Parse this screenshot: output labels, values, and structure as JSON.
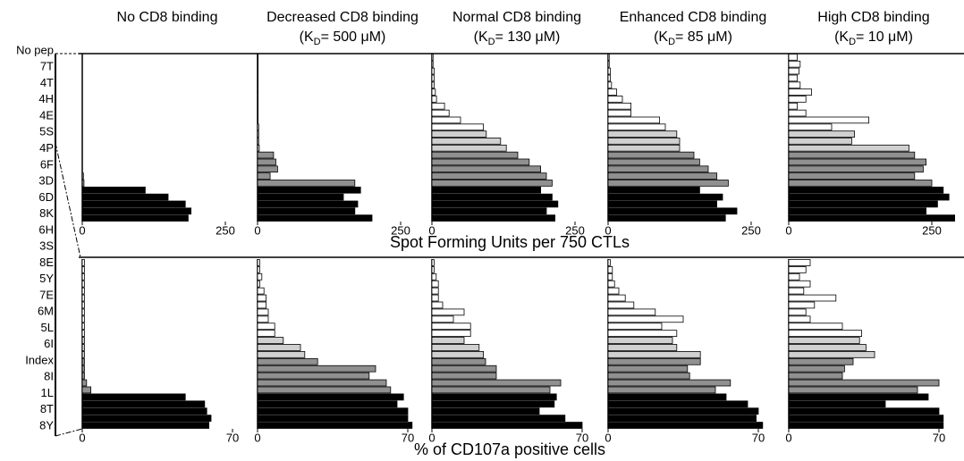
{
  "categories": [
    "No pep",
    "7T",
    "4T",
    "4H",
    "4E",
    "5S",
    "4P",
    "6F",
    "3D",
    "6D",
    "8K",
    "6H",
    "3S",
    "8E",
    "5Y",
    "7E",
    "6M",
    "5L",
    "6I",
    "Index",
    "8I",
    "1L",
    "8T",
    "8Y"
  ],
  "bar_colors": [
    "#ffffff",
    "#ffffff",
    "#ffffff",
    "#ffffff",
    "#ffffff",
    "#ffffff",
    "#ffffff",
    "#ffffff",
    "#ffffff",
    "#ffffff",
    "#ffffff",
    "#d0d0d0",
    "#d0d0d0",
    "#d0d0d0",
    "#909090",
    "#909090",
    "#909090",
    "#909090",
    "#909090",
    "#000000",
    "#000000",
    "#000000",
    "#000000",
    "#000000"
  ],
  "columns": [
    {
      "title": "No CD8 binding"
    },
    {
      "title": "Decreased CD8 binding",
      "subtitle": {
        "pre": "(K",
        "sub": "D",
        "post": "= 500 μM)"
      }
    },
    {
      "title": "Normal CD8 binding",
      "subtitle": {
        "pre": "(K",
        "sub": "D",
        "post": "= 130 μM)"
      }
    },
    {
      "title": "Enhanced CD8 binding",
      "subtitle": {
        "pre": "(K",
        "sub": "D",
        "post": "= 85 μM)"
      }
    },
    {
      "title": "High CD8 binding",
      "subtitle": {
        "pre": "(K",
        "sub": "D",
        "post": "= 10 μM)"
      }
    }
  ],
  "axis_titles": [
    "Spot Forming Units per 750 CTLs",
    "% of CD107a positive cells"
  ],
  "chart_data": [
    {
      "type": "bar",
      "values": [
        0,
        0,
        0,
        0,
        0,
        0,
        0,
        0,
        0,
        0,
        0,
        0,
        0,
        0,
        0,
        0,
        0,
        2,
        3,
        110,
        150,
        180,
        190,
        185
      ],
      "xlim": [
        0,
        300
      ],
      "xticks": [
        0,
        250
      ]
    },
    {
      "type": "bar",
      "values": [
        1,
        1,
        1,
        1,
        1,
        1,
        1,
        1,
        1,
        1,
        2,
        2,
        2,
        3,
        28,
        32,
        35,
        22,
        170,
        180,
        150,
        175,
        170,
        200
      ],
      "xlim": [
        0,
        300
      ],
      "xticks": [
        0,
        250
      ]
    },
    {
      "type": "bar",
      "values": [
        2,
        2,
        4,
        4,
        4,
        6,
        8,
        22,
        30,
        50,
        90,
        95,
        120,
        130,
        150,
        170,
        190,
        200,
        210,
        190,
        210,
        220,
        200,
        215
      ],
      "xlim": [
        0,
        300
      ],
      "xticks": [
        0,
        250
      ]
    },
    {
      "type": "bar",
      "values": [
        2,
        2,
        4,
        4,
        6,
        15,
        25,
        40,
        40,
        90,
        100,
        120,
        125,
        125,
        150,
        160,
        175,
        190,
        210,
        160,
        200,
        190,
        225,
        205
      ],
      "xlim": [
        0,
        300
      ],
      "xticks": [
        0,
        250
      ]
    },
    {
      "type": "bar",
      "values": [
        15,
        20,
        18,
        15,
        20,
        40,
        30,
        15,
        30,
        140,
        75,
        115,
        110,
        210,
        220,
        240,
        235,
        220,
        250,
        270,
        280,
        260,
        240,
        290
      ],
      "xlim": [
        0,
        300
      ],
      "xticks": [
        0,
        250
      ]
    },
    {
      "type": "bar",
      "values": [
        1,
        1,
        1,
        1,
        1,
        1,
        1,
        1,
        1,
        1,
        1,
        1,
        1,
        1,
        1,
        1,
        1,
        2,
        4,
        48,
        57,
        58,
        60,
        59
      ],
      "xlim": [
        0,
        80
      ],
      "xticks": [
        0,
        70
      ]
    },
    {
      "type": "bar",
      "values": [
        1,
        1,
        2,
        1,
        3,
        4,
        4,
        5,
        5,
        8,
        8,
        12,
        20,
        22,
        28,
        55,
        52,
        60,
        62,
        68,
        65,
        70,
        70,
        72
      ],
      "xlim": [
        0,
        80
      ],
      "xticks": [
        0,
        70
      ]
    },
    {
      "type": "bar",
      "values": [
        1,
        1,
        2,
        3,
        3,
        3,
        5,
        15,
        10,
        18,
        18,
        15,
        22,
        24,
        25,
        30,
        30,
        60,
        55,
        58,
        57,
        50,
        62,
        70
      ],
      "xlim": [
        0,
        80
      ],
      "xticks": [
        0,
        70
      ]
    },
    {
      "type": "bar",
      "values": [
        1,
        2,
        2,
        3,
        5,
        8,
        12,
        22,
        35,
        25,
        32,
        30,
        32,
        43,
        43,
        37,
        38,
        57,
        50,
        55,
        65,
        70,
        69,
        72
      ],
      "xlim": [
        0,
        80
      ],
      "xticks": [
        0,
        70
      ]
    },
    {
      "type": "bar",
      "values": [
        10,
        8,
        5,
        10,
        7,
        22,
        12,
        8,
        10,
        25,
        34,
        33,
        36,
        40,
        30,
        26,
        25,
        70,
        60,
        65,
        45,
        70,
        72,
        72
      ],
      "xlim": [
        0,
        80
      ],
      "xticks": [
        0,
        70
      ]
    }
  ]
}
